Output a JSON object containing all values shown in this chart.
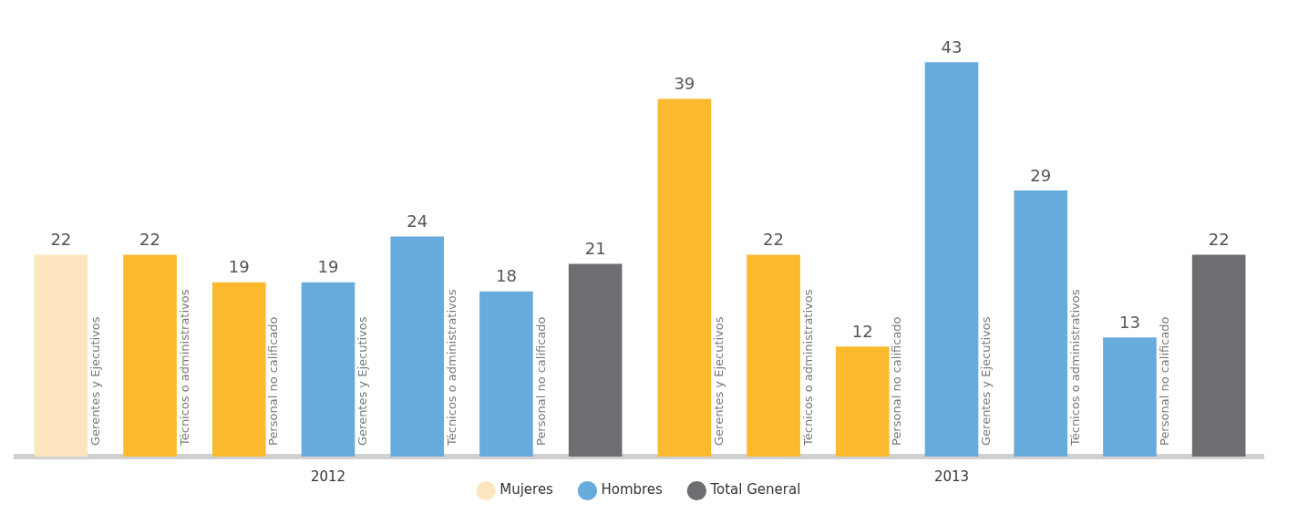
{
  "chart_data": {
    "type": "bar",
    "categories": [
      "Gerentes y Ejecutivos",
      "Técnicos o administrativos",
      "Personal no calificado",
      "Gerentes y Ejecutivos",
      "Técnicos o administrativos",
      "Personal no calificado",
      null,
      "Gerentes y Ejecutivos",
      "Técnicos o administrativos",
      "Personal no calificado",
      "Gerentes y Ejecutivos",
      "Técnicos o administrativos",
      "Personal no calificado",
      null
    ],
    "series": [
      {
        "name": "Mujeres",
        "color": "#fbb92d",
        "colors": [
          "#fde6bf",
          "#fbb92d",
          "#fbb92d",
          null,
          null,
          null,
          null,
          "#fbb92d",
          "#fbb92d",
          "#fbb92d",
          null,
          null,
          null,
          null
        ],
        "values": [
          22,
          22,
          19,
          null,
          null,
          null,
          null,
          39,
          22,
          12,
          null,
          null,
          null,
          null
        ]
      },
      {
        "name": "Hombres",
        "color": "#67abdd",
        "values": [
          null,
          null,
          null,
          19,
          24,
          18,
          null,
          null,
          null,
          null,
          43,
          29,
          13,
          null
        ]
      },
      {
        "name": "Total General",
        "color": "#6d6e71",
        "values": [
          null,
          null,
          null,
          null,
          null,
          null,
          21,
          null,
          null,
          null,
          null,
          null,
          null,
          22
        ]
      }
    ],
    "annotations": [
      "2012",
      "2013"
    ],
    "data_labels": true,
    "grid": false,
    "legend": "bottom"
  }
}
